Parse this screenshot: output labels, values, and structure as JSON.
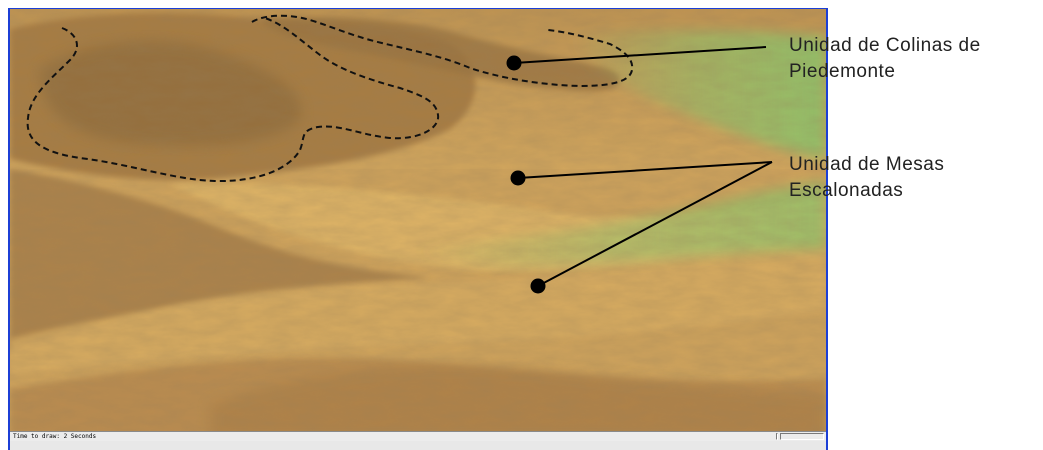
{
  "status_bar": {
    "text": "Time to draw: 2 Seconds"
  },
  "labels": [
    {
      "id": "colinas",
      "text": "Unidad de Colinas de\nPiedemonte"
    },
    {
      "id": "mesas",
      "text": "Unidad de Mesas\nEscalonadas"
    }
  ],
  "colors": {
    "window_border": "#1c3fd6",
    "terrain_light": "#e0b466",
    "terrain_dark": "#8e6a3a",
    "terrain_mid": "#c9a05a",
    "lowland_green": "#8fc46a",
    "boundary_line": "#111111",
    "leader_line": "#000000"
  },
  "legend": {
    "boundary_style": "dashed",
    "marker": "filled-circle"
  }
}
